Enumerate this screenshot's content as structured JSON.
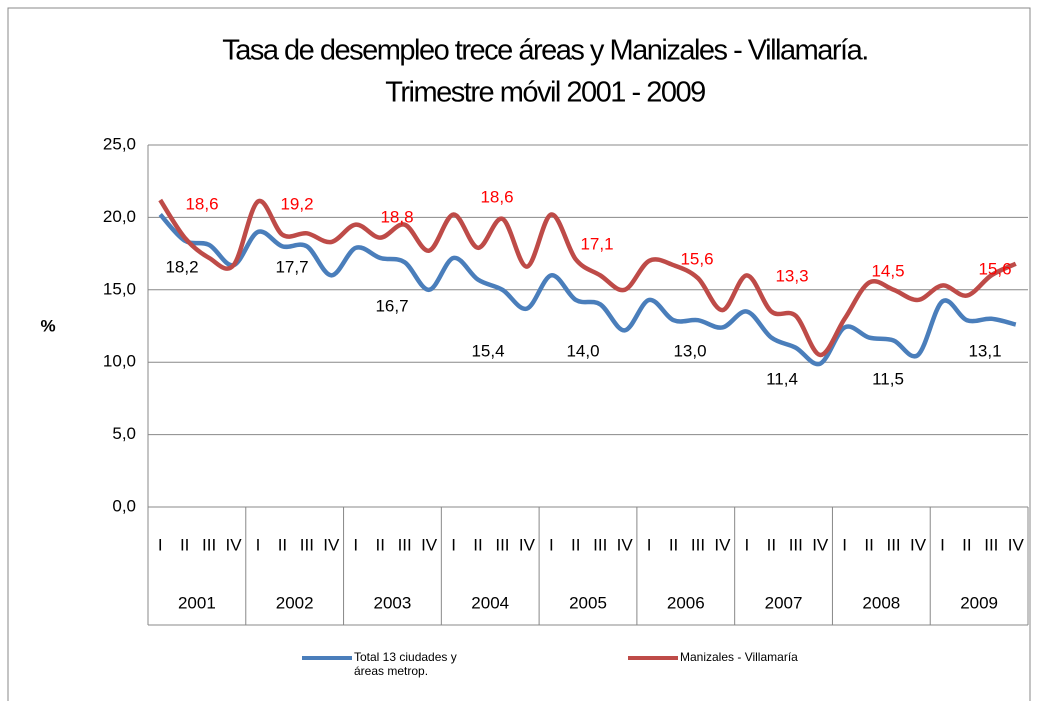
{
  "chart_data": {
    "type": "line",
    "title": "Tasa de desempleo trece áreas y Manizales - Villamaría.",
    "subtitle": "Trimestre móvil 2001 - 2009",
    "y_label": "%",
    "categories": [
      "I",
      "II",
      "III",
      "IV",
      "I",
      "II",
      "III",
      "IV",
      "I",
      "II",
      "III",
      "IV",
      "I",
      "II",
      "III",
      "IV",
      "I",
      "II",
      "III",
      "IV",
      "I",
      "II",
      "III",
      "IV",
      "I",
      "II",
      "III",
      "IV",
      "I",
      "II",
      "III",
      "IV",
      "I",
      "II",
      "III",
      "IV"
    ],
    "years": [
      "2001",
      "2002",
      "2003",
      "2004",
      "2005",
      "2006",
      "2007",
      "2008",
      "2009"
    ],
    "ylim": [
      0,
      25
    ],
    "yticks": [
      {
        "value": 0,
        "label": "0,0"
      },
      {
        "value": 5,
        "label": "5,0"
      },
      {
        "value": 10,
        "label": "10,0"
      },
      {
        "value": 15,
        "label": "15,0"
      },
      {
        "value": 20,
        "label": "20,0"
      },
      {
        "value": 25,
        "label": "25,0"
      }
    ],
    "grid": true,
    "legend": "bottom",
    "series": [
      {
        "name": "Total 13 ciudades y áreas metrop.",
        "color": "#4a7ebb",
        "values": [
          20.2,
          18.4,
          18.1,
          16.7,
          19.0,
          18.0,
          18.0,
          16.0,
          17.9,
          17.2,
          16.9,
          15.0,
          17.2,
          15.7,
          15.0,
          13.7,
          16.0,
          14.3,
          14.0,
          12.2,
          14.3,
          12.9,
          12.9,
          12.4,
          13.5,
          11.7,
          11.0,
          9.9,
          12.4,
          11.7,
          11.5,
          10.5,
          14.2,
          12.9,
          13.0,
          12.6
        ],
        "annual_values": [
          18.2,
          17.7,
          16.7,
          15.4,
          14.0,
          13.0,
          11.4,
          11.5,
          13.1
        ],
        "annual_labels": [
          "18,2",
          "17,7",
          "16,7",
          "15,4",
          "14,0",
          "13,0",
          "11,4",
          "11,5",
          "13,1"
        ],
        "label_color": "#000000"
      },
      {
        "name": "Manizales - Villamaría",
        "color": "#be4b48",
        "values": [
          21.2,
          18.6,
          17.2,
          16.7,
          21.1,
          18.8,
          18.9,
          18.3,
          19.5,
          18.6,
          19.5,
          17.7,
          20.2,
          17.9,
          19.9,
          16.6,
          20.2,
          17.1,
          16.0,
          15.0,
          17.0,
          16.7,
          15.8,
          13.6,
          16.0,
          13.5,
          13.2,
          10.5,
          13.0,
          15.5,
          15.0,
          14.3,
          15.3,
          14.6,
          16.0,
          16.8
        ],
        "annual_values": [
          18.6,
          19.2,
          18.8,
          18.6,
          17.1,
          15.6,
          13.3,
          14.5,
          15.6
        ],
        "annual_labels": [
          "18,6",
          "19,2",
          "18,8",
          "18,6",
          "17,1",
          "15,6",
          "13,3",
          "14,5",
          "15,6"
        ],
        "label_color": "#ff0000"
      }
    ]
  }
}
